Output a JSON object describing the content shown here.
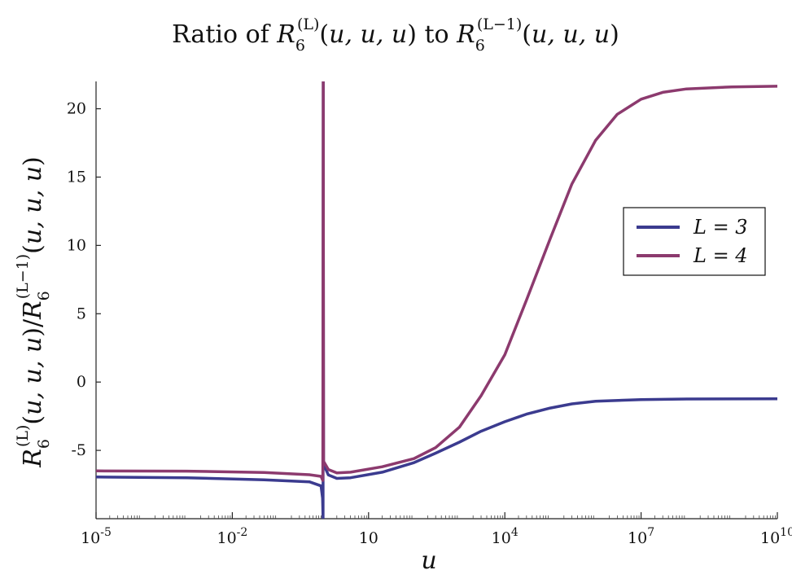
{
  "chart_data": {
    "type": "line",
    "title": "Ratio of R6^(L)(u,u,u) to R6^(L−1)(u,u,u)",
    "xlabel": "u",
    "ylabel": "R6^(L)(u,u,u)/R6^(L−1)(u,u,u)",
    "xscale": "log",
    "xlim": [
      1e-05,
      10000000000.0
    ],
    "ylim": [
      -10,
      22
    ],
    "x_ticks": [
      {
        "value": 1e-05,
        "label": "10^-5"
      },
      {
        "value": 0.01,
        "label": "10^-2"
      },
      {
        "value": 10,
        "label": "10"
      },
      {
        "value": 10000.0,
        "label": "10^4"
      },
      {
        "value": 10000000.0,
        "label": "10^7"
      },
      {
        "value": 10000000000.0,
        "label": "10^10"
      }
    ],
    "y_ticks": [
      -5,
      0,
      5,
      10,
      15,
      20
    ],
    "grid": false,
    "legend_position": "right",
    "series": [
      {
        "name": "L = 3",
        "color": "#3b3b8f",
        "points": [
          [
            1e-05,
            -6.95
          ],
          [
            0.001,
            -7.0
          ],
          [
            0.05,
            -7.15
          ],
          [
            0.5,
            -7.3
          ],
          [
            0.9,
            -7.6
          ],
          [
            0.97,
            -8.5
          ],
          [
            0.995,
            -10.0
          ],
          [
            1.005,
            22
          ],
          [
            1.02,
            -6.0
          ],
          [
            1.3,
            -6.8
          ],
          [
            2,
            -7.05
          ],
          [
            4,
            -7.0
          ],
          [
            20,
            -6.6
          ],
          [
            100,
            -5.9
          ],
          [
            300,
            -5.2
          ],
          [
            1000,
            -4.4
          ],
          [
            3000,
            -3.6
          ],
          [
            10000.0,
            -2.9
          ],
          [
            30000.0,
            -2.35
          ],
          [
            100000.0,
            -1.9
          ],
          [
            300000.0,
            -1.6
          ],
          [
            1000000.0,
            -1.4
          ],
          [
            10000000.0,
            -1.28
          ],
          [
            100000000.0,
            -1.24
          ],
          [
            10000000000.0,
            -1.22
          ]
        ]
      },
      {
        "name": "L = 4",
        "color": "#8c3a6e",
        "points": [
          [
            1e-05,
            -6.5
          ],
          [
            0.001,
            -6.52
          ],
          [
            0.05,
            -6.62
          ],
          [
            0.5,
            -6.78
          ],
          [
            0.9,
            -6.9
          ],
          [
            0.985,
            -7.2
          ],
          [
            1.003,
            22
          ],
          [
            1.02,
            -5.8
          ],
          [
            1.3,
            -6.4
          ],
          [
            2,
            -6.65
          ],
          [
            4,
            -6.6
          ],
          [
            20,
            -6.2
          ],
          [
            100,
            -5.6
          ],
          [
            300,
            -4.8
          ],
          [
            1000,
            -3.3
          ],
          [
            3000,
            -1.0
          ],
          [
            10000.0,
            2.0
          ],
          [
            30000.0,
            6.0
          ],
          [
            100000.0,
            10.5
          ],
          [
            300000.0,
            14.5
          ],
          [
            1000000.0,
            17.7
          ],
          [
            3000000.0,
            19.6
          ],
          [
            10000000.0,
            20.7
          ],
          [
            30000000.0,
            21.2
          ],
          [
            100000000.0,
            21.45
          ],
          [
            1000000000.0,
            21.6
          ],
          [
            10000000000.0,
            21.65
          ]
        ]
      }
    ]
  }
}
